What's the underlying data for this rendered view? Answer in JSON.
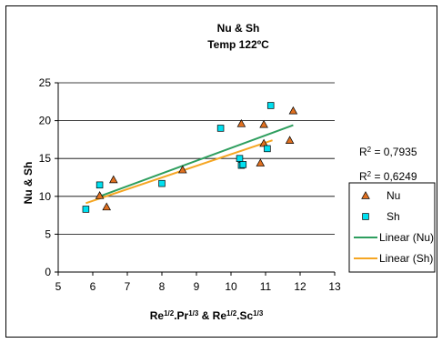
{
  "chart_data": {
    "type": "scatter",
    "title": "Nu & Sh",
    "subtitle": "Temp 122ºC",
    "xlabel_html": "Re<tspan baseline-shift='super' font-size='8'>1/2</tspan>.Pr<tspan baseline-shift='super' font-size='8'>1/3</tspan> &amp; Re<tspan baseline-shift='super' font-size='8'>1/2</tspan>.Sc<tspan baseline-shift='super' font-size='8'>1/3</tspan>",
    "xlabel": "Re1/2.Pr1/3 & Re1/2.Sc1/3",
    "ylabel": "Nu & Sh",
    "xlim": [
      5,
      13
    ],
    "ylim": [
      0,
      25
    ],
    "xticks": [
      5,
      6,
      7,
      8,
      9,
      10,
      11,
      12,
      13
    ],
    "yticks": [
      0,
      5,
      10,
      15,
      20,
      25
    ],
    "grid": "horizontal",
    "legend_position": "right",
    "series": [
      {
        "name": "Nu",
        "marker": "triangle",
        "color": "#E07020",
        "points": [
          [
            6.2,
            10.1
          ],
          [
            6.4,
            8.6
          ],
          [
            6.6,
            12.2
          ],
          [
            8.6,
            13.5
          ],
          [
            10.3,
            19.6
          ],
          [
            10.85,
            14.4
          ],
          [
            10.95,
            17.0
          ],
          [
            10.95,
            19.5
          ],
          [
            11.7,
            17.4
          ],
          [
            11.8,
            21.3
          ]
        ]
      },
      {
        "name": "Sh",
        "marker": "square",
        "color": "#00E0F0",
        "points": [
          [
            5.8,
            8.3
          ],
          [
            6.2,
            11.5
          ],
          [
            8.0,
            11.7
          ],
          [
            9.7,
            19.0
          ],
          [
            10.25,
            15.0
          ],
          [
            10.3,
            14.1
          ],
          [
            10.35,
            14.2
          ],
          [
            11.05,
            16.3
          ],
          [
            11.15,
            22.0
          ]
        ]
      }
    ],
    "trendlines": [
      {
        "name": "Linear (Nu)",
        "color": "#2E9E5E",
        "from": [
          6.2,
          10.0
        ],
        "to": [
          11.8,
          19.4
        ]
      },
      {
        "name": "Linear (Sh)",
        "color": "#F5A623",
        "from": [
          5.8,
          9.1
        ],
        "to": [
          11.2,
          17.4
        ]
      }
    ],
    "annotations": [
      {
        "label": "R",
        "sup": "2",
        "value": " = 0,7935"
      },
      {
        "label": "R",
        "sup": "2",
        "value": " = 0,6249"
      }
    ]
  }
}
